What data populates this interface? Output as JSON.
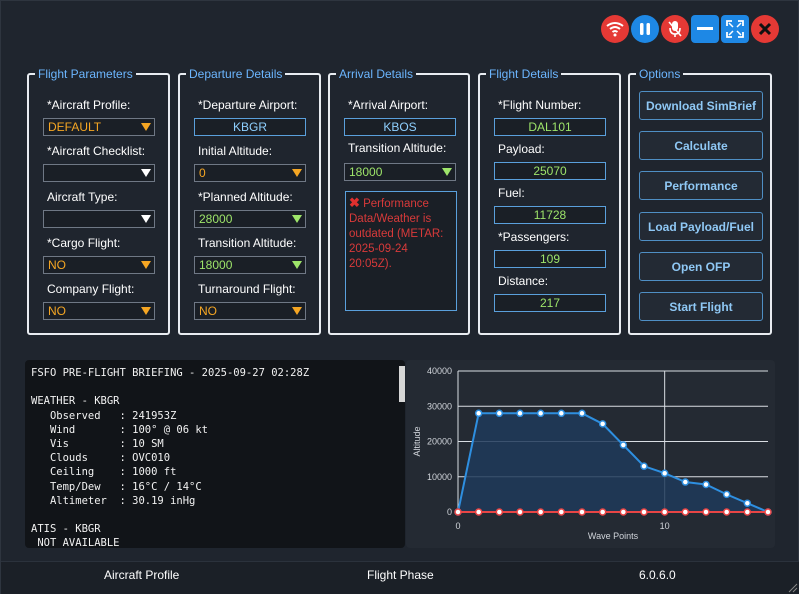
{
  "window_controls": [
    {
      "name": "wifi-icon",
      "color": "#e53935"
    },
    {
      "name": "pause-icon",
      "color": "#1e88e5"
    },
    {
      "name": "mic-muted-icon",
      "color": "#e53935"
    },
    {
      "name": "minimize-icon",
      "color": "#1e88e5"
    },
    {
      "name": "maximize-icon",
      "color": "#1e88e5"
    },
    {
      "name": "close-icon",
      "color": "#e53935"
    }
  ],
  "flight_parameters": {
    "title": "Flight Parameters",
    "aircraft_profile_label": "*Aircraft Profile:",
    "aircraft_profile_value": "DEFAULT",
    "checklist_label": "*Aircraft Checklist:",
    "checklist_value": "",
    "aircraft_type_label": "Aircraft Type:",
    "aircraft_type_value": "",
    "cargo_label": "*Cargo Flight:",
    "cargo_value": "NO",
    "company_label": "Company Flight:",
    "company_value": "NO"
  },
  "departure": {
    "title": "Departure Details",
    "airport_label": "*Departure Airport:",
    "airport_value": "KBGR",
    "initial_alt_label": "Initial Altitude:",
    "initial_alt_value": "0",
    "planned_alt_label": "*Planned Altitude:",
    "planned_alt_value": "28000",
    "transition_label": "Transition Altitude:",
    "transition_value": "18000",
    "turnaround_label": "Turnaround Flight:",
    "turnaround_value": "NO"
  },
  "arrival": {
    "title": "Arrival Details",
    "airport_label": "*Arrival Airport:",
    "airport_value": "KBOS",
    "transition_label": "Transition Altitude:",
    "transition_value": "18000",
    "warning_icon": "x-mark-icon",
    "warning_text": "Performance Data/Weather is outdated (METAR: 2025-09-24 20:05Z)."
  },
  "flight_details": {
    "title": "Flight Details",
    "flight_number_label": "*Flight Number:",
    "flight_number_value": "DAL101",
    "payload_label": "Payload:",
    "payload_value": "25070",
    "fuel_label": "Fuel:",
    "fuel_value": "11728",
    "passengers_label": "*Passengers:",
    "passengers_value": "109",
    "distance_label": "Distance:",
    "distance_value": "217"
  },
  "options": {
    "title": "Options",
    "buttons": [
      "Download SimBrief",
      "Calculate",
      "Performance",
      "Load Payload/Fuel",
      "Open OFP",
      "Start Flight"
    ]
  },
  "briefing": {
    "lines": [
      "FSFO PRE-FLIGHT BRIEFING - 2025-09-27 02:28Z",
      "",
      "WEATHER - KBGR",
      "   Observed   : 241953Z",
      "   Wind       : 100° @ 06 kt",
      "   Vis        : 10 SM",
      "   Clouds     : OVC010",
      "   Ceiling    : 1000 ft",
      "   Temp/Dew   : 16°C / 14°C",
      "   Altimeter  : 30.19 inHg",
      "",
      "ATIS - KBGR",
      " NOT AVAILABLE"
    ]
  },
  "chart_data": {
    "type": "line",
    "xlabel": "Wave Points",
    "ylabel": "Altitude",
    "xlim": [
      0,
      15
    ],
    "ylim": [
      0,
      40000
    ],
    "yticks": [
      0,
      10000,
      20000,
      30000,
      40000
    ],
    "xticks": [
      0,
      10
    ],
    "grid": true,
    "series": [
      {
        "color": "#2e8fe0",
        "fill": true,
        "x": [
          0,
          1,
          2,
          3,
          4,
          5,
          6,
          7,
          8,
          9,
          10,
          11,
          12,
          13,
          14,
          15
        ],
        "values": [
          0,
          28000,
          28000,
          28000,
          28000,
          28000,
          28000,
          25000,
          19000,
          13000,
          11000,
          8500,
          7800,
          5000,
          2500,
          0
        ]
      },
      {
        "color": "#e84545",
        "fill": false,
        "x": [
          0,
          1,
          2,
          3,
          4,
          5,
          6,
          7,
          8,
          9,
          10,
          11,
          12,
          13,
          14,
          15
        ],
        "values": [
          0,
          0,
          0,
          0,
          0,
          0,
          0,
          0,
          0,
          0,
          0,
          0,
          0,
          0,
          0,
          0
        ]
      }
    ]
  },
  "status_bar": {
    "left": "Aircraft Profile",
    "center": "Flight Phase",
    "right": "6.0.6.0"
  }
}
